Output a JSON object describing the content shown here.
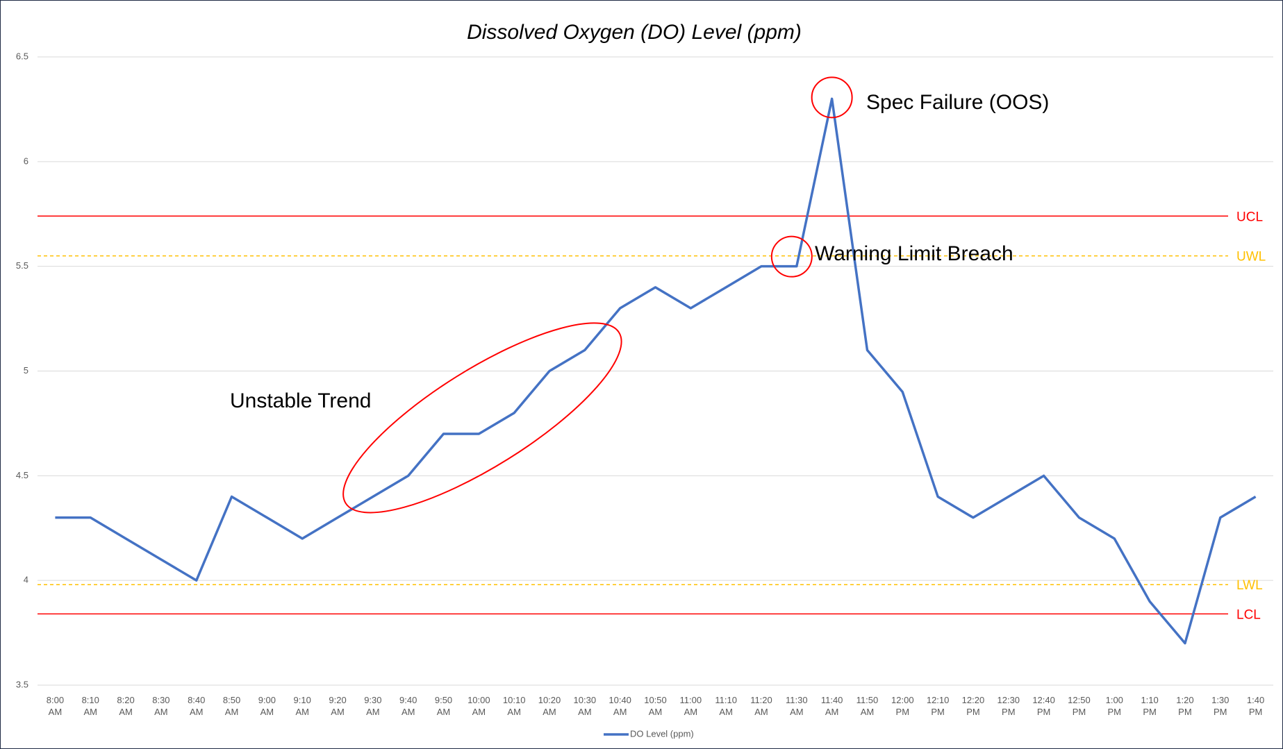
{
  "chart_data": {
    "type": "line",
    "title": "Dissolved Oxygen (DO) Level (ppm)",
    "categories": [
      "8:00 AM",
      "8:10 AM",
      "8:20 AM",
      "8:30 AM",
      "8:40 AM",
      "8:50 AM",
      "9:00 AM",
      "9:10 AM",
      "9:20 AM",
      "9:30 AM",
      "9:40 AM",
      "9:50 AM",
      "10:00 AM",
      "10:10 AM",
      "10:20 AM",
      "10:30 AM",
      "10:40 AM",
      "10:50 AM",
      "11:00 AM",
      "11:10 AM",
      "11:20 AM",
      "11:30 AM",
      "11:40 AM",
      "11:50 AM",
      "12:00 PM",
      "12:10 PM",
      "12:20 PM",
      "12:30 PM",
      "12:40 PM",
      "12:50 PM",
      "1:00 PM",
      "1:10 PM",
      "1:20 PM",
      "1:30 PM",
      "1:40 PM"
    ],
    "series": [
      {
        "name": "DO Level (ppm)",
        "color": "#4472c4",
        "values": [
          4.3,
          4.3,
          4.2,
          4.1,
          4.0,
          4.4,
          4.3,
          4.2,
          4.3,
          4.4,
          4.5,
          4.7,
          4.7,
          4.8,
          5.0,
          5.1,
          5.3,
          5.4,
          5.3,
          5.4,
          5.5,
          5.5,
          6.3,
          5.1,
          4.9,
          4.4,
          4.3,
          4.4,
          4.5,
          4.3,
          4.2,
          3.9,
          3.7,
          4.3,
          4.4
        ]
      }
    ],
    "ylim": [
      3.5,
      6.5
    ],
    "yticks": [
      3.5,
      4,
      4.5,
      5,
      5.5,
      6,
      6.5
    ],
    "grid": true,
    "legend": "bottom",
    "limit_lines": [
      {
        "name": "UCL",
        "value": 5.74,
        "color": "#ff0000",
        "dashed": false
      },
      {
        "name": "UWL",
        "value": 5.55,
        "color": "#ffc000",
        "dashed": true
      },
      {
        "name": "LWL",
        "value": 3.98,
        "color": "#ffc000",
        "dashed": true
      },
      {
        "name": "LCL",
        "value": 3.84,
        "color": "#ff0000",
        "dashed": false
      }
    ],
    "annotations": [
      "Spec Failure (OOS)",
      "Warning Limit Breach",
      "Unstable Trend"
    ]
  }
}
